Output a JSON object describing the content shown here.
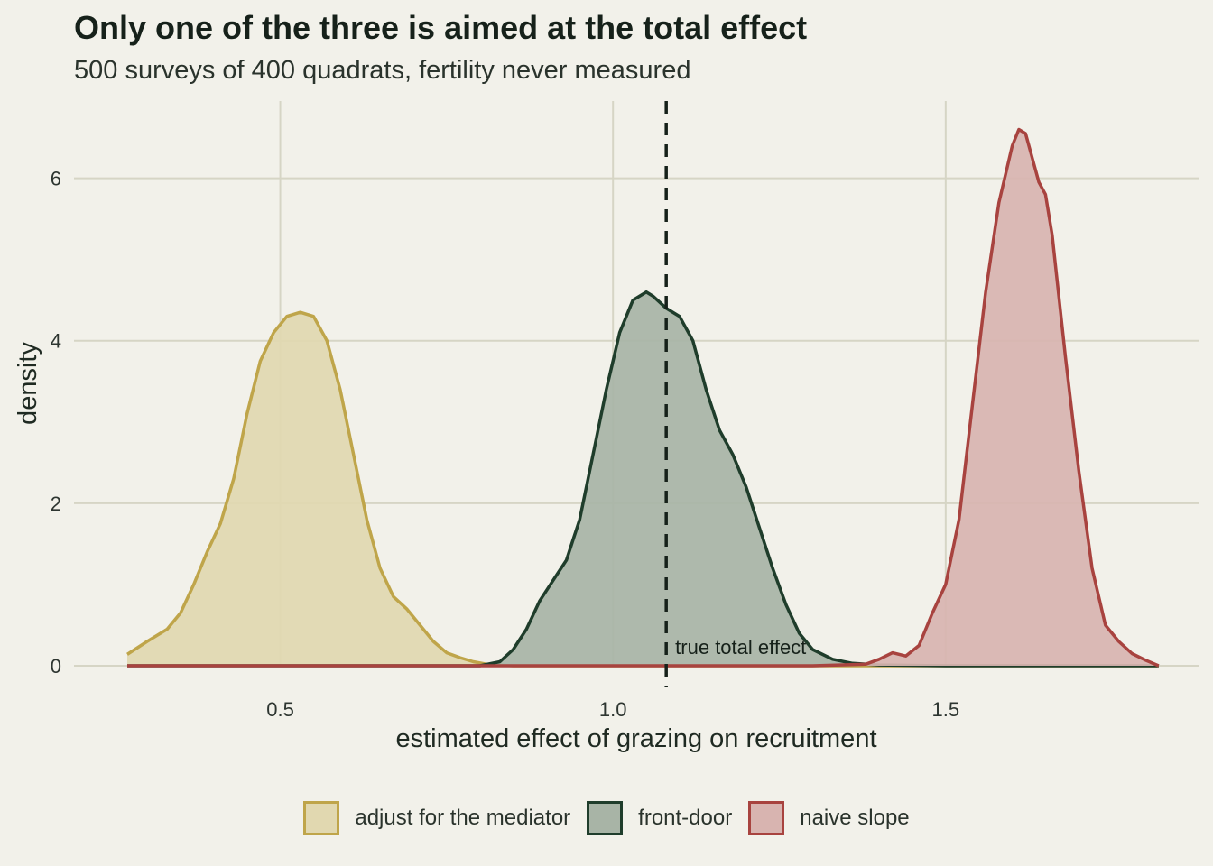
{
  "chart_data": {
    "type": "area",
    "title": "Only one of the three is aimed at the total effect",
    "subtitle": "500 surveys of 400 quadrats, fertility never measured",
    "xlabel": "estimated effect of grazing on recruitment",
    "ylabel": "density",
    "xlim": [
      0.19,
      1.88
    ],
    "ylim": [
      0,
      6.95
    ],
    "x_ticks": [
      0.5,
      1.0,
      1.5
    ],
    "x_tick_labels": [
      "0.5",
      "1.0",
      "1.5"
    ],
    "y_ticks": [
      0,
      2,
      4,
      6
    ],
    "y_tick_labels": [
      "0",
      "2",
      "4",
      "6"
    ],
    "grid": true,
    "legend_position": "bottom",
    "reference_line": {
      "x": 1.08,
      "label": "true total effect",
      "style": "dashed"
    },
    "series": [
      {
        "name": "adjust for the mediator",
        "color": "#bfa54a",
        "fill": "#e1d8b0",
        "x": [
          0.27,
          0.3,
          0.33,
          0.35,
          0.37,
          0.39,
          0.41,
          0.43,
          0.45,
          0.47,
          0.49,
          0.51,
          0.53,
          0.55,
          0.57,
          0.59,
          0.61,
          0.63,
          0.65,
          0.67,
          0.69,
          0.71,
          0.73,
          0.75,
          0.77,
          0.79,
          0.81,
          0.83,
          0.85,
          0.87,
          0.9,
          1.0,
          1.2,
          1.4,
          1.6,
          1.82
        ],
        "y": [
          0.14,
          0.3,
          0.45,
          0.65,
          1.0,
          1.4,
          1.75,
          2.3,
          3.1,
          3.75,
          4.1,
          4.3,
          4.35,
          4.3,
          4.0,
          3.4,
          2.6,
          1.8,
          1.2,
          0.85,
          0.7,
          0.5,
          0.3,
          0.16,
          0.1,
          0.05,
          0.02,
          0.01,
          0.0,
          0.0,
          0.0,
          0.0,
          0.0,
          0.0,
          0.0,
          0.0
        ]
      },
      {
        "name": "front-door",
        "color": "#1f3d2b",
        "fill": "#a8b4a6",
        "x": [
          0.27,
          0.6,
          0.8,
          0.83,
          0.85,
          0.87,
          0.89,
          0.91,
          0.93,
          0.95,
          0.97,
          0.99,
          1.01,
          1.03,
          1.05,
          1.06,
          1.08,
          1.1,
          1.12,
          1.14,
          1.16,
          1.18,
          1.2,
          1.22,
          1.24,
          1.26,
          1.28,
          1.3,
          1.33,
          1.36,
          1.4,
          1.5,
          1.6,
          1.82
        ],
        "y": [
          0.0,
          0.0,
          0.0,
          0.05,
          0.2,
          0.45,
          0.8,
          1.05,
          1.3,
          1.8,
          2.6,
          3.4,
          4.1,
          4.5,
          4.6,
          4.55,
          4.4,
          4.3,
          4.0,
          3.4,
          2.9,
          2.6,
          2.2,
          1.7,
          1.2,
          0.75,
          0.4,
          0.2,
          0.08,
          0.03,
          0.01,
          0.0,
          0.0,
          0.0
        ]
      },
      {
        "name": "naive slope",
        "color": "#a8433f",
        "fill": "#d8b4b0",
        "x": [
          0.27,
          0.8,
          1.3,
          1.38,
          1.4,
          1.42,
          1.44,
          1.46,
          1.48,
          1.5,
          1.52,
          1.54,
          1.56,
          1.58,
          1.6,
          1.61,
          1.62,
          1.63,
          1.64,
          1.65,
          1.66,
          1.68,
          1.7,
          1.72,
          1.74,
          1.76,
          1.78,
          1.8,
          1.82
        ],
        "y": [
          0.0,
          0.0,
          0.0,
          0.02,
          0.08,
          0.16,
          0.12,
          0.25,
          0.65,
          1.0,
          1.8,
          3.2,
          4.6,
          5.7,
          6.4,
          6.6,
          6.55,
          6.25,
          5.95,
          5.8,
          5.3,
          3.8,
          2.4,
          1.2,
          0.5,
          0.3,
          0.15,
          0.07,
          0.0
        ]
      }
    ]
  }
}
